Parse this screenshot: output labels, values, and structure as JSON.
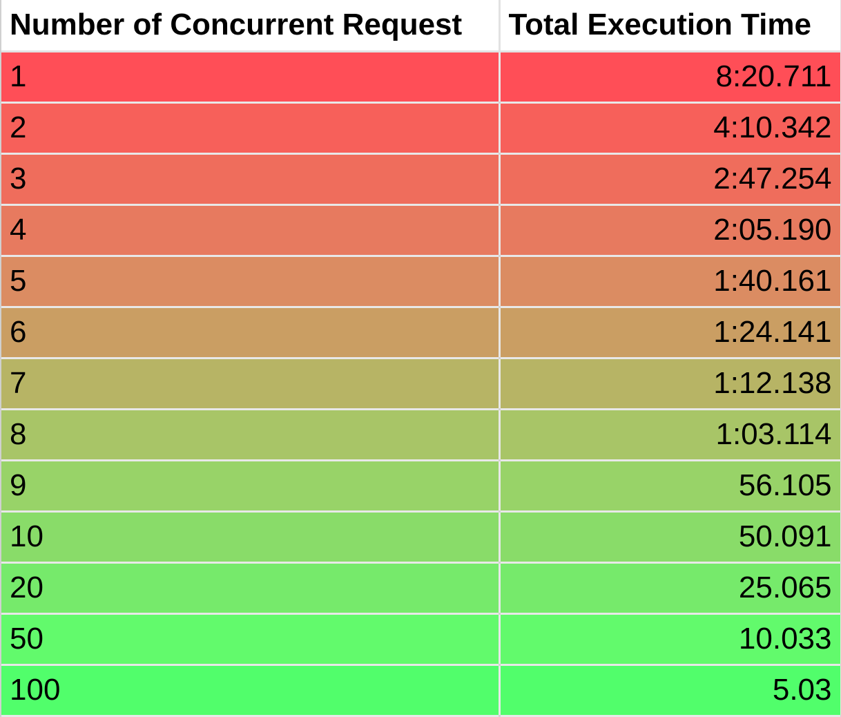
{
  "table": {
    "headers": [
      "Number of Concurrent Request",
      "Total Execution Time"
    ],
    "rows": [
      {
        "requests": "1",
        "time": "8:20.711",
        "color": "#ff4e57"
      },
      {
        "requests": "2",
        "time": "4:10.342",
        "color": "#f7605a"
      },
      {
        "requests": "3",
        "time": "2:47.254",
        "color": "#ef6d5c"
      },
      {
        "requests": "4",
        "time": "2:05.190",
        "color": "#e77a5f"
      },
      {
        "requests": "5",
        "time": "1:40.161",
        "color": "#db8c62"
      },
      {
        "requests": "6",
        "time": "1:24.141",
        "color": "#ca9e63"
      },
      {
        "requests": "7",
        "time": "1:12.138",
        "color": "#b7b465"
      },
      {
        "requests": "8",
        "time": "1:03.114",
        "color": "#a8c567"
      },
      {
        "requests": "9",
        "time": "56.105",
        "color": "#98d368"
      },
      {
        "requests": "10",
        "time": "50.091",
        "color": "#89dc69"
      },
      {
        "requests": "20",
        "time": "25.065",
        "color": "#76ea6b"
      },
      {
        "requests": "50",
        "time": "10.033",
        "color": "#62fa6c"
      },
      {
        "requests": "100",
        "time": "5.03",
        "color": "#51fe6b"
      }
    ]
  }
}
